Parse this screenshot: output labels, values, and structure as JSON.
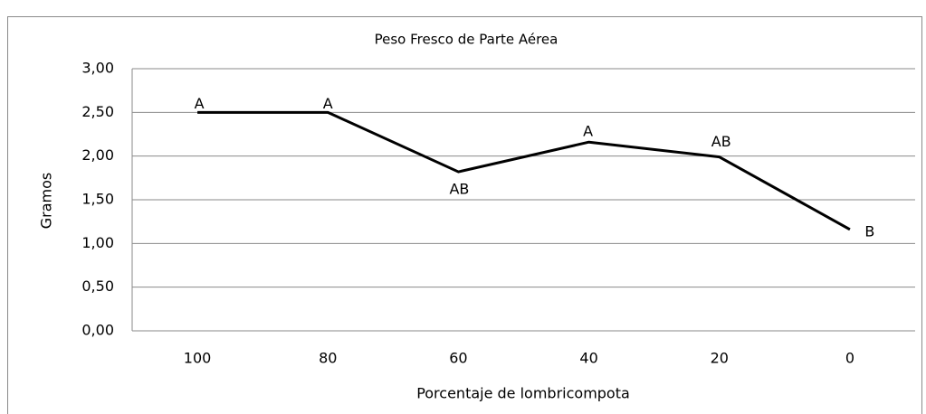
{
  "chart_data": {
    "type": "line",
    "title": "Peso Fresco de Parte Aérea",
    "x_label": "Porcentaje de lombricompota",
    "y_label": "Gramos",
    "categories": [
      "100",
      "80",
      "60",
      "40",
      "20",
      "0"
    ],
    "values": [
      2.5,
      2.5,
      1.82,
      2.16,
      1.99,
      1.16
    ],
    "annotations": [
      "A",
      "A",
      "AB",
      "A",
      "AB",
      "B"
    ],
    "color": "#000000",
    "ylim": [
      0,
      3
    ],
    "yticks": [
      {
        "value": 0,
        "label": "0,00"
      },
      {
        "value": 0.5,
        "label": "0,50"
      },
      {
        "value": 1,
        "label": "1,00"
      },
      {
        "value": 1.5,
        "label": "1,50"
      },
      {
        "value": 2,
        "label": "2,00"
      },
      {
        "value": 2.5,
        "label": "2,50"
      },
      {
        "value": 3,
        "label": "3,00"
      }
    ],
    "grid": true
  }
}
